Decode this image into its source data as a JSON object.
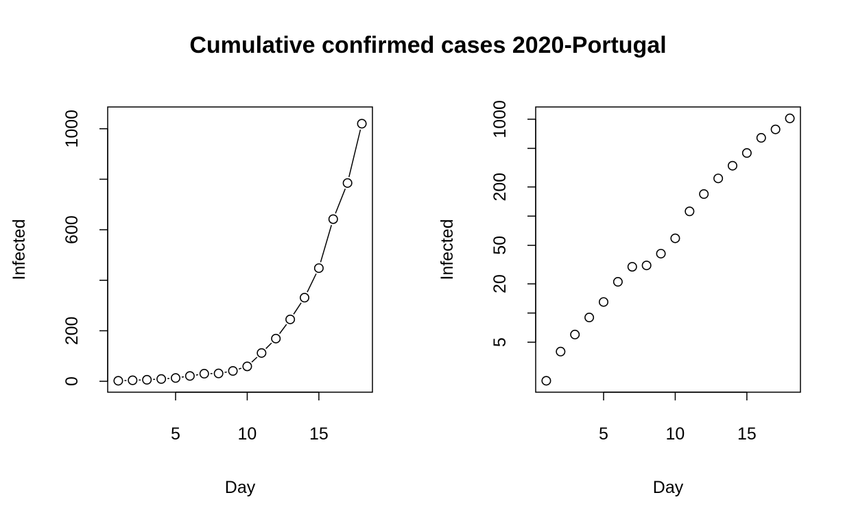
{
  "figure": {
    "title": "Cumulative confirmed cases 2020-Portugal"
  },
  "chart_data": [
    {
      "type": "scatter",
      "title": "",
      "xlabel": "Day",
      "ylabel": "Infected",
      "xlim": [
        1,
        18
      ],
      "ylim": [
        2,
        1041
      ],
      "y_scale": "linear",
      "x_ticks": [
        5,
        10,
        15
      ],
      "y_ticks": [
        0,
        200,
        400,
        600,
        800,
        1000
      ],
      "y_tick_labels": [
        "0",
        "200",
        "",
        "600",
        "",
        "1000"
      ],
      "grid": false,
      "marker": "open-circle",
      "connecting_line": true,
      "series": [
        {
          "x": [
            1,
            2,
            3,
            4,
            5,
            6,
            7,
            8,
            9,
            10,
            11,
            12,
            13,
            14,
            15,
            16,
            17,
            18
          ],
          "y": [
            2,
            4,
            6,
            9,
            13,
            21,
            30,
            31,
            41,
            59,
            112,
            169,
            245,
            331,
            448,
            642,
            785,
            1020
          ]
        }
      ]
    },
    {
      "type": "scatter",
      "title": "",
      "xlabel": "Day",
      "ylabel": "Infected",
      "xlim": [
        1,
        18
      ],
      "ylim": [
        2,
        1020
      ],
      "y_scale": "log",
      "x_ticks": [
        5,
        10,
        15
      ],
      "y_ticks": [
        5,
        10,
        20,
        50,
        100,
        200,
        500,
        1000
      ],
      "y_tick_labels": [
        "5",
        "",
        "20",
        "50",
        "",
        "200",
        "",
        "1000"
      ],
      "grid": false,
      "marker": "open-circle",
      "connecting_line": false,
      "series": [
        {
          "x": [
            1,
            2,
            3,
            4,
            5,
            6,
            7,
            8,
            9,
            10,
            11,
            12,
            13,
            14,
            15,
            16,
            17,
            18
          ],
          "y": [
            2,
            4,
            6,
            9,
            13,
            21,
            30,
            31,
            41,
            59,
            112,
            169,
            245,
            331,
            448,
            642,
            785,
            1020
          ]
        }
      ]
    }
  ]
}
